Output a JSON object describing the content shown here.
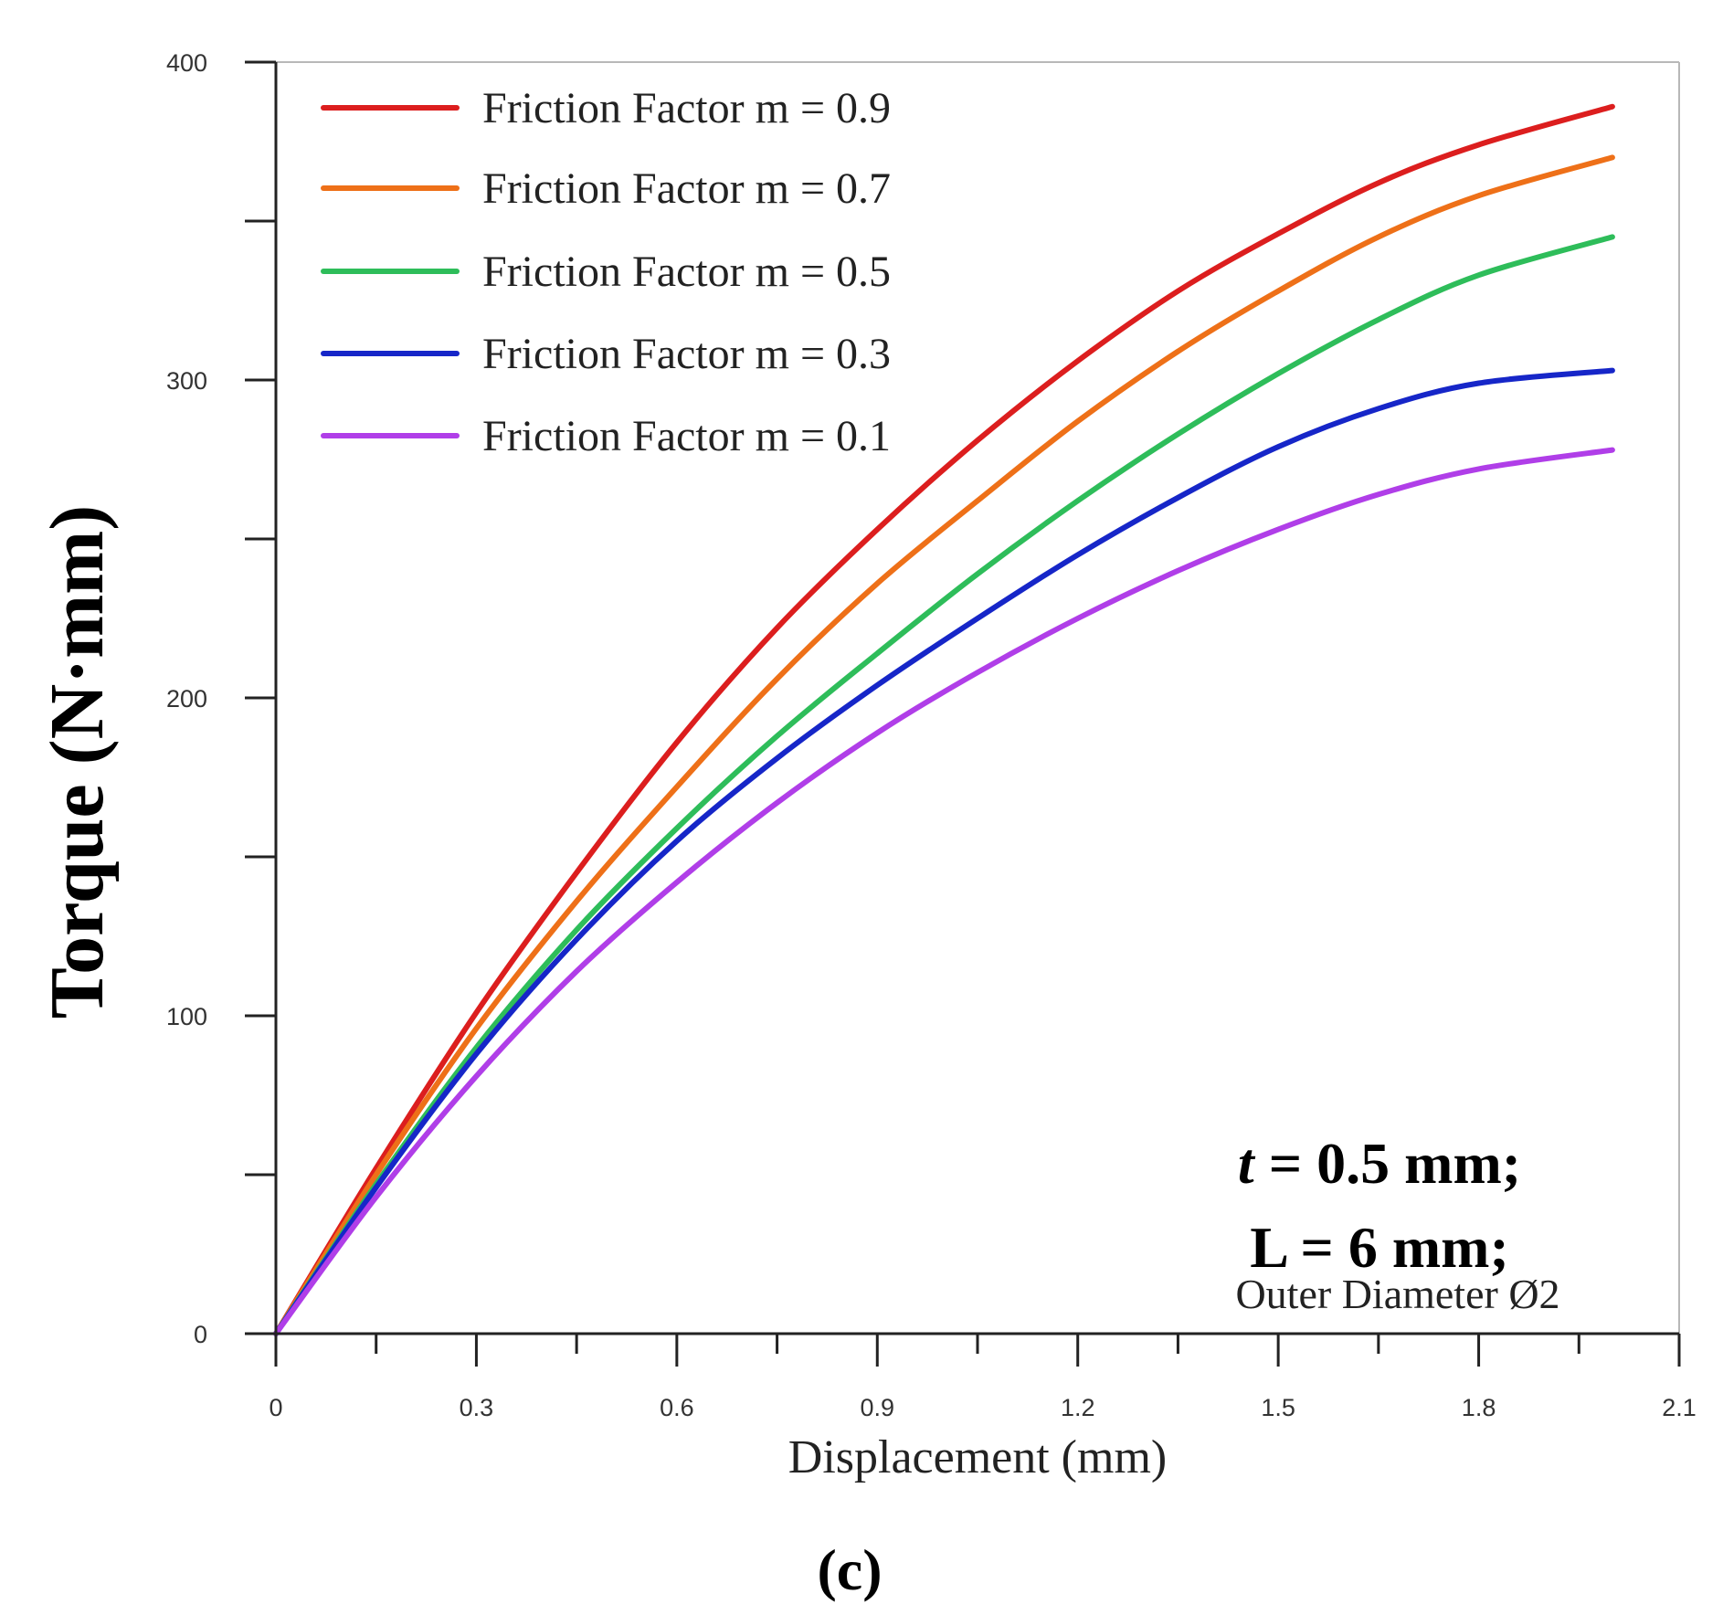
{
  "chart_data": {
    "type": "line",
    "title": "",
    "xlabel": "Displacement (mm)",
    "ylabel": "Torque (N·mm)",
    "xlim": [
      0,
      2.1
    ],
    "ylim": [
      0,
      400
    ],
    "x_ticks": [
      "0",
      "0.3",
      "0.6",
      "0.9",
      "1.2",
      "1.5",
      "1.8",
      "2.1"
    ],
    "x_minor_step": 0.15,
    "y_ticks": [
      "0",
      "100",
      "200",
      "300",
      "400"
    ],
    "y_minor_step": 50,
    "grid": false,
    "legend_position": "top-left",
    "x": [
      0,
      0.15,
      0.3,
      0.45,
      0.6,
      0.75,
      0.9,
      1.05,
      1.2,
      1.35,
      1.5,
      1.65,
      1.8,
      2.0
    ],
    "series": [
      {
        "name": "Friction Factor m = 0.9",
        "color": "#dc1e1e",
        "values": [
          0,
          52,
          101,
          145,
          186,
          222,
          253,
          281,
          306,
          328,
          346,
          362,
          374,
          386
        ]
      },
      {
        "name": "Friction Factor m = 0.7",
        "color": "#ee7018",
        "values": [
          0,
          50,
          96,
          136,
          172,
          206,
          236,
          262,
          287,
          309,
          328,
          345,
          358,
          370
        ]
      },
      {
        "name": "Friction Factor m = 0.5",
        "color": "#2ebd5a",
        "values": [
          0,
          47,
          90,
          127,
          159,
          188,
          214,
          239,
          262,
          283,
          302,
          319,
          333,
          345
        ]
      },
      {
        "name": "Friction Factor m = 0.3",
        "color": "#1626c8",
        "values": [
          0,
          46,
          88,
          124,
          155,
          181,
          204,
          225,
          245,
          263,
          279,
          291,
          299,
          303
        ]
      },
      {
        "name": "Friction Factor m = 0.1",
        "color": "#b03ee8",
        "values": [
          0,
          43,
          81,
          114,
          142,
          167,
          189,
          208,
          225,
          240,
          253,
          264,
          272,
          278
        ]
      }
    ],
    "annotations": {
      "line1_italic": "t",
      "line1_rest": " = 0.5 mm;",
      "line2": "L = 6 mm;",
      "line3": "Outer Diameter Ø2"
    },
    "panel_label": "(c)"
  }
}
